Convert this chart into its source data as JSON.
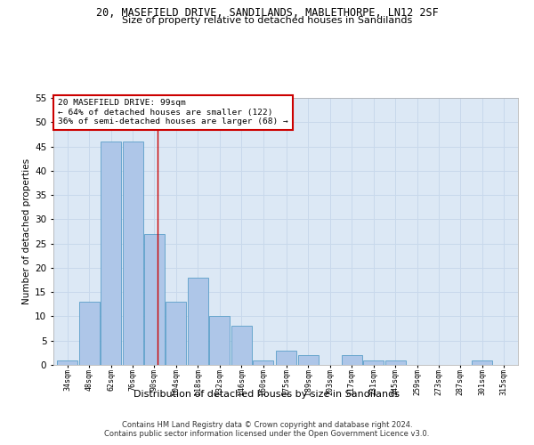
{
  "title1": "20, MASEFIELD DRIVE, SANDILANDS, MABLETHORPE, LN12 2SF",
  "title2": "Size of property relative to detached houses in Sandilands",
  "xlabel": "Distribution of detached houses by size in Sandilands",
  "ylabel": "Number of detached properties",
  "footer1": "Contains HM Land Registry data © Crown copyright and database right 2024.",
  "footer2": "Contains public sector information licensed under the Open Government Licence v3.0.",
  "annotation_line1": "20 MASEFIELD DRIVE: 99sqm",
  "annotation_line2": "← 64% of detached houses are smaller (122)",
  "annotation_line3": "36% of semi-detached houses are larger (68) →",
  "bar_left_edges": [
    34,
    48,
    62,
    76,
    90,
    104,
    118,
    132,
    146,
    160,
    175,
    189,
    203,
    217,
    231,
    245,
    259,
    273,
    287,
    301,
    315
  ],
  "bar_widths": [
    14,
    14,
    14,
    14,
    14,
    14,
    14,
    14,
    14,
    14,
    14,
    14,
    14,
    14,
    14,
    14,
    14,
    14,
    14,
    14,
    14
  ],
  "bar_heights": [
    1,
    13,
    46,
    46,
    27,
    13,
    18,
    10,
    8,
    1,
    3,
    2,
    0,
    2,
    1,
    1,
    0,
    0,
    0,
    1,
    0
  ],
  "bar_color": "#aec6e8",
  "bar_edge_color": "#5a9fc8",
  "vline_color": "#cc0000",
  "vline_x": 99,
  "annotation_box_color": "#cc0000",
  "ylim": [
    0,
    55
  ],
  "yticks": [
    0,
    5,
    10,
    15,
    20,
    25,
    30,
    35,
    40,
    45,
    50,
    55
  ],
  "grid_color": "#c8d8eb",
  "plot_bg_color": "#dce8f5"
}
